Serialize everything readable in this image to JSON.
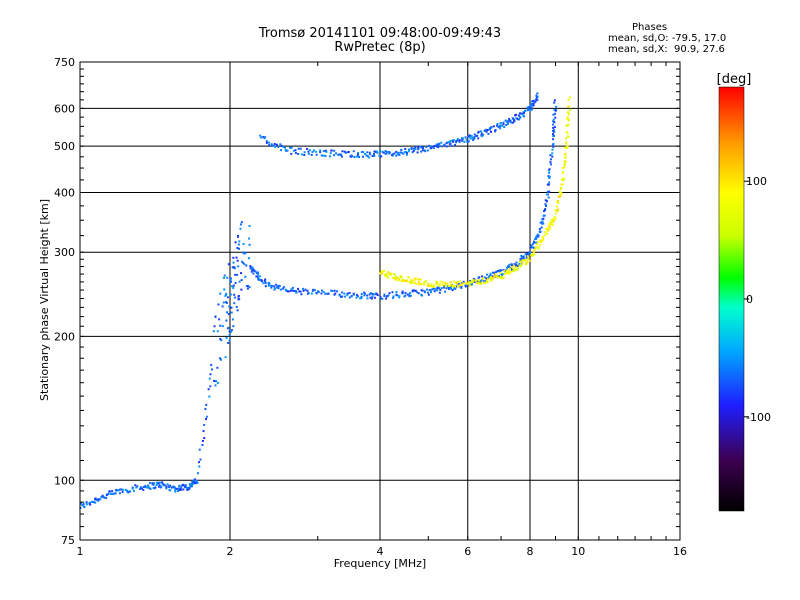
{
  "chart_data": {
    "type": "scatter",
    "title": "Tromsø 20141101 09:48:00-09:49:43",
    "subtitle": "RwPretec (8p)",
    "xlabel": "Frequency [MHz]",
    "ylabel": "Stationary phase Virtual Height [km]",
    "x_scale": "log",
    "y_scale": "log",
    "xlim": [
      1,
      16
    ],
    "ylim": [
      75,
      750
    ],
    "x_ticks": [
      1,
      2,
      4,
      6,
      8,
      10,
      16
    ],
    "y_ticks": [
      75,
      100,
      200,
      300,
      400,
      500,
      600,
      750
    ],
    "x_tick_labels": [
      "1",
      "2",
      "4",
      "6",
      "8",
      "10",
      "16"
    ],
    "y_tick_labels": [
      "75",
      "100",
      "200",
      "300",
      "400",
      "500",
      "600",
      "750"
    ],
    "grid": true,
    "legend": {
      "heading": "Phases",
      "line1": "mean, sd,O: -79.5, 17.0",
      "line2": "mean, sd,X:  90.9, 27.6"
    },
    "colorbar": {
      "label": "[deg]",
      "min": -180,
      "max": 180,
      "ticks": [
        100,
        0,
        -100
      ],
      "tick_labels": [
        "100",
        "0",
        "-100"
      ],
      "colormap": [
        "#000000",
        "#3c0050",
        "#1e1eff",
        "#00aaff",
        "#00ffcc",
        "#00ff00",
        "#ccff00",
        "#ffff00",
        "#ff9900",
        "#ff0000"
      ]
    },
    "series": [
      {
        "trace": "O",
        "x": [
          1.0,
          1.1,
          1.2,
          1.35,
          1.45,
          1.55,
          1.65,
          1.72,
          1.85,
          1.95,
          2.0,
          2.05,
          2.1,
          2.2,
          2.3,
          2.5,
          2.8,
          3.2,
          3.6,
          4.0,
          4.5,
          5.0,
          5.5,
          6.0,
          6.5,
          7.0,
          7.5,
          8.0,
          8.4,
          8.7,
          8.9,
          9.0
        ],
        "y": [
          88,
          92,
          95,
          97,
          98,
          96,
          97,
          100,
          180,
          220,
          240,
          260,
          300,
          280,
          262,
          252,
          248,
          246,
          244,
          243,
          245,
          248,
          252,
          258,
          265,
          272,
          283,
          300,
          335,
          400,
          520,
          620
        ],
        "phase_mean": -79.5,
        "phase_sd": 17.0
      },
      {
        "trace": "O-echo",
        "x": [
          2.3,
          2.6,
          3.0,
          3.4,
          3.8,
          4.2,
          4.6,
          5.0,
          5.5,
          6.0,
          6.5,
          7.0,
          7.5,
          8.0,
          8.3
        ],
        "y": [
          520,
          490,
          484,
          482,
          480,
          482,
          488,
          495,
          505,
          518,
          533,
          552,
          573,
          598,
          640
        ],
        "phase_mean": -79.5,
        "phase_sd": 17.0
      },
      {
        "trace": "X",
        "x": [
          4.0,
          4.3,
          4.6,
          5.0,
          5.5,
          6.0,
          6.5,
          7.0,
          7.5,
          8.0,
          8.5,
          9.0,
          9.3,
          9.5,
          9.6
        ],
        "y": [
          272,
          266,
          262,
          258,
          256,
          258,
          262,
          268,
          278,
          292,
          320,
          360,
          420,
          520,
          630
        ],
        "phase_mean": 90.9,
        "phase_sd": 27.6
      }
    ]
  }
}
